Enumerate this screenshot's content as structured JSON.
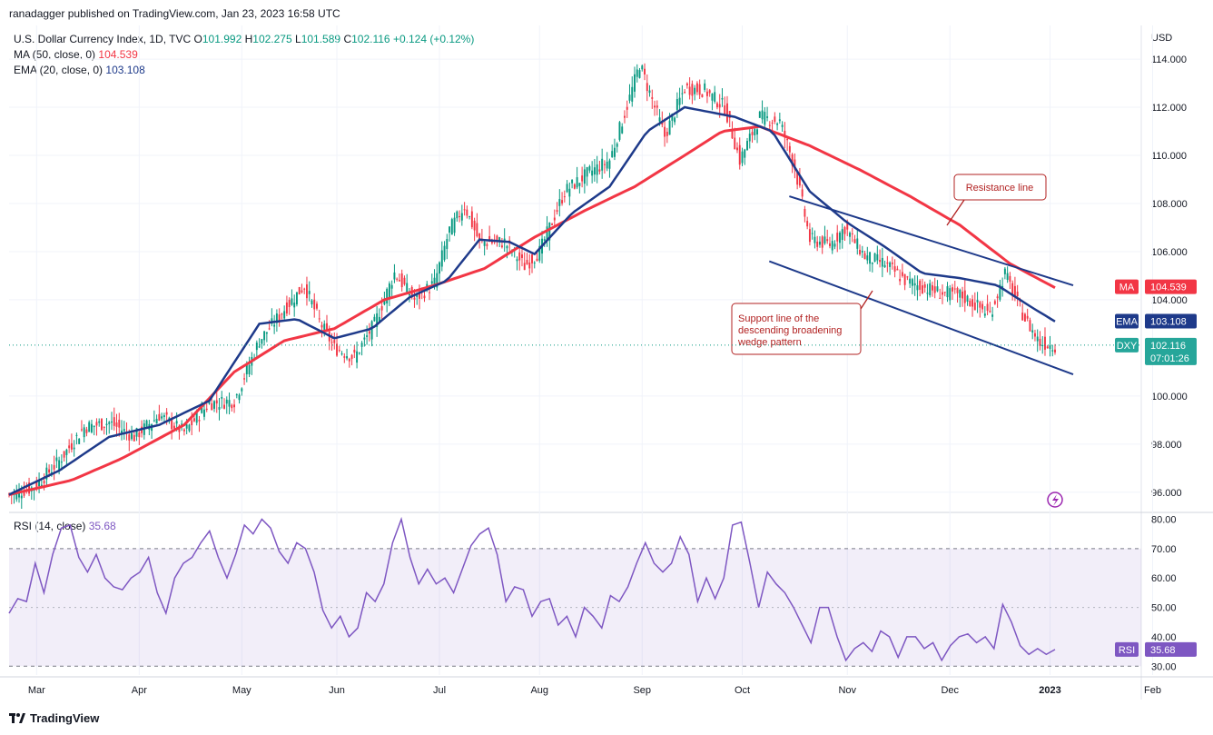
{
  "header": {
    "published": "ranadagger published on TradingView.com, Jan 23, 2023 16:58 UTC"
  },
  "legend": {
    "symbol": "U.S. Dollar Currency Index, 1D, TVC",
    "o_label": "O",
    "o": "101.992",
    "h_label": "H",
    "h": "102.275",
    "l_label": "L",
    "l": "101.589",
    "c_label": "C",
    "c": "102.116",
    "change": "+0.124 (+0.12%)",
    "ma_label": "MA (50, close, 0)",
    "ma_value": "104.539",
    "ema_label": "EMA (20, close, 0)",
    "ema_value": "103.108",
    "rsi_label": "RSI (14, close)",
    "rsi_value": "35.68"
  },
  "footer": {
    "brand": "TradingView"
  },
  "colors": {
    "up": "#089981",
    "down": "#f23645",
    "ma": "#f23645",
    "ema": "#1e3a8a",
    "rsi": "#7e57c2",
    "wedge": "#1e3a8a",
    "annotation": "#b22222"
  },
  "chart_data": [
    {
      "type": "candlestick",
      "currency_label": "USD",
      "ylim": [
        95.2,
        115.4
      ],
      "y_ticks": [
        "114.000",
        "112.000",
        "110.000",
        "108.000",
        "106.000",
        "104.000",
        "100.000",
        "98.000",
        "96.000"
      ],
      "x_ticks": [
        "Mar",
        "Apr",
        "May",
        "Jun",
        "Jul",
        "Aug",
        "Sep",
        "Oct",
        "Nov",
        "Dec",
        "2023",
        "Feb"
      ],
      "price_labels": [
        {
          "name": "MA",
          "value": "104.539"
        },
        {
          "name": "EMA",
          "value": "103.108"
        },
        {
          "name": "DXY",
          "value": "102.116",
          "countdown": "07:01:26"
        }
      ],
      "close_path": [
        [
          0,
          95.9
        ],
        [
          10,
          96.2
        ],
        [
          20,
          97.3
        ],
        [
          30,
          98.7
        ],
        [
          40,
          98.9
        ],
        [
          50,
          98.3
        ],
        [
          60,
          99.2
        ],
        [
          70,
          98.5
        ],
        [
          80,
          99.7
        ],
        [
          90,
          99.8
        ],
        [
          100,
          102.3
        ],
        [
          110,
          103.6
        ],
        [
          118,
          104.6
        ],
        [
          124,
          103.1
        ],
        [
          130,
          102.0
        ],
        [
          138,
          101.6
        ],
        [
          146,
          103.0
        ],
        [
          154,
          105.1
        ],
        [
          162,
          104.0
        ],
        [
          170,
          104.7
        ],
        [
          176,
          106.9
        ],
        [
          182,
          107.9
        ],
        [
          188,
          106.4
        ],
        [
          198,
          106.4
        ],
        [
          206,
          105.4
        ],
        [
          212,
          106.0
        ],
        [
          222,
          108.5
        ],
        [
          232,
          109.3
        ],
        [
          240,
          109.8
        ],
        [
          248,
          112.4
        ],
        [
          252,
          113.8
        ],
        [
          258,
          112.0
        ],
        [
          262,
          110.8
        ],
        [
          270,
          112.8
        ],
        [
          278,
          112.7
        ],
        [
          286,
          112.0
        ],
        [
          292,
          109.8
        ],
        [
          300,
          111.6
        ],
        [
          308,
          111.4
        ],
        [
          314,
          109.5
        ],
        [
          320,
          106.5
        ],
        [
          328,
          106.3
        ],
        [
          334,
          107.0
        ],
        [
          342,
          105.8
        ],
        [
          350,
          105.5
        ],
        [
          358,
          104.8
        ],
        [
          366,
          104.5
        ],
        [
          372,
          104.3
        ],
        [
          380,
          104.2
        ],
        [
          386,
          103.8
        ],
        [
          392,
          103.4
        ],
        [
          398,
          105.1
        ],
        [
          402,
          104.1
        ],
        [
          406,
          103.2
        ],
        [
          412,
          102.2
        ],
        [
          418,
          102.1
        ]
      ],
      "ma_50": [
        [
          0,
          95.9
        ],
        [
          25,
          96.5
        ],
        [
          45,
          97.4
        ],
        [
          70,
          98.8
        ],
        [
          90,
          101.0
        ],
        [
          110,
          102.3
        ],
        [
          130,
          102.8
        ],
        [
          150,
          104.0
        ],
        [
          170,
          104.6
        ],
        [
          190,
          105.3
        ],
        [
          210,
          106.6
        ],
        [
          230,
          107.7
        ],
        [
          250,
          108.7
        ],
        [
          270,
          110.0
        ],
        [
          285,
          111.0
        ],
        [
          300,
          111.2
        ],
        [
          320,
          110.4
        ],
        [
          340,
          109.4
        ],
        [
          360,
          108.3
        ],
        [
          380,
          107.1
        ],
        [
          400,
          105.5
        ],
        [
          418,
          104.5
        ]
      ],
      "ema_20": [
        [
          0,
          95.9
        ],
        [
          20,
          96.9
        ],
        [
          40,
          98.3
        ],
        [
          60,
          98.8
        ],
        [
          80,
          99.8
        ],
        [
          100,
          103.0
        ],
        [
          115,
          103.2
        ],
        [
          130,
          102.4
        ],
        [
          145,
          102.8
        ],
        [
          160,
          104.1
        ],
        [
          175,
          104.8
        ],
        [
          188,
          106.5
        ],
        [
          200,
          106.4
        ],
        [
          210,
          105.9
        ],
        [
          225,
          107.6
        ],
        [
          240,
          108.7
        ],
        [
          255,
          111.0
        ],
        [
          270,
          112.0
        ],
        [
          290,
          111.6
        ],
        [
          305,
          111.0
        ],
        [
          320,
          108.5
        ],
        [
          335,
          107.2
        ],
        [
          350,
          106.2
        ],
        [
          365,
          105.1
        ],
        [
          380,
          104.9
        ],
        [
          395,
          104.6
        ],
        [
          410,
          103.6
        ],
        [
          418,
          103.1
        ]
      ],
      "annotations": [
        {
          "label": "Resistance line",
          "line_from": {
            "x": 310,
            "price": 108.3
          },
          "line_to": {
            "x": 418,
            "price": 104.6
          }
        },
        {
          "label": "Support line of the descending broadening wedge pattern",
          "line_from": {
            "x": 302,
            "price": 105.6
          },
          "line_to": {
            "x": 418,
            "price": 100.9
          }
        }
      ]
    },
    {
      "type": "line",
      "name": "RSI (14, close)",
      "ylim": [
        27,
        82
      ],
      "y_ticks": [
        "80.00",
        "70.00",
        "60.00",
        "50.00",
        "40.00",
        "30.00"
      ],
      "band": [
        30,
        70
      ],
      "values": [
        48,
        53,
        52,
        65,
        55,
        68,
        77,
        78,
        67,
        62,
        68,
        60,
        57,
        56,
        60,
        62,
        67,
        55,
        48,
        60,
        65,
        67,
        72,
        76,
        67,
        60,
        68,
        78,
        75,
        80,
        77,
        69,
        65,
        72,
        70,
        62,
        49,
        43,
        47,
        40,
        43,
        55,
        52,
        58,
        72,
        80,
        67,
        58,
        63,
        58,
        60,
        55,
        63,
        71,
        75,
        77,
        68,
        52,
        57,
        56,
        47,
        52,
        53,
        44,
        47,
        40,
        50,
        47,
        43,
        54,
        52,
        57,
        65,
        72,
        65,
        62,
        65,
        74,
        68,
        52,
        60,
        53,
        60,
        78,
        79,
        65,
        50,
        62,
        58,
        55,
        50,
        44,
        38,
        50,
        50,
        40,
        32,
        36,
        38,
        35,
        42,
        40,
        33,
        40,
        40,
        36,
        38,
        32,
        37,
        40,
        41,
        38,
        40,
        36,
        51,
        45,
        37,
        34,
        36,
        34,
        35.68
      ]
    }
  ]
}
